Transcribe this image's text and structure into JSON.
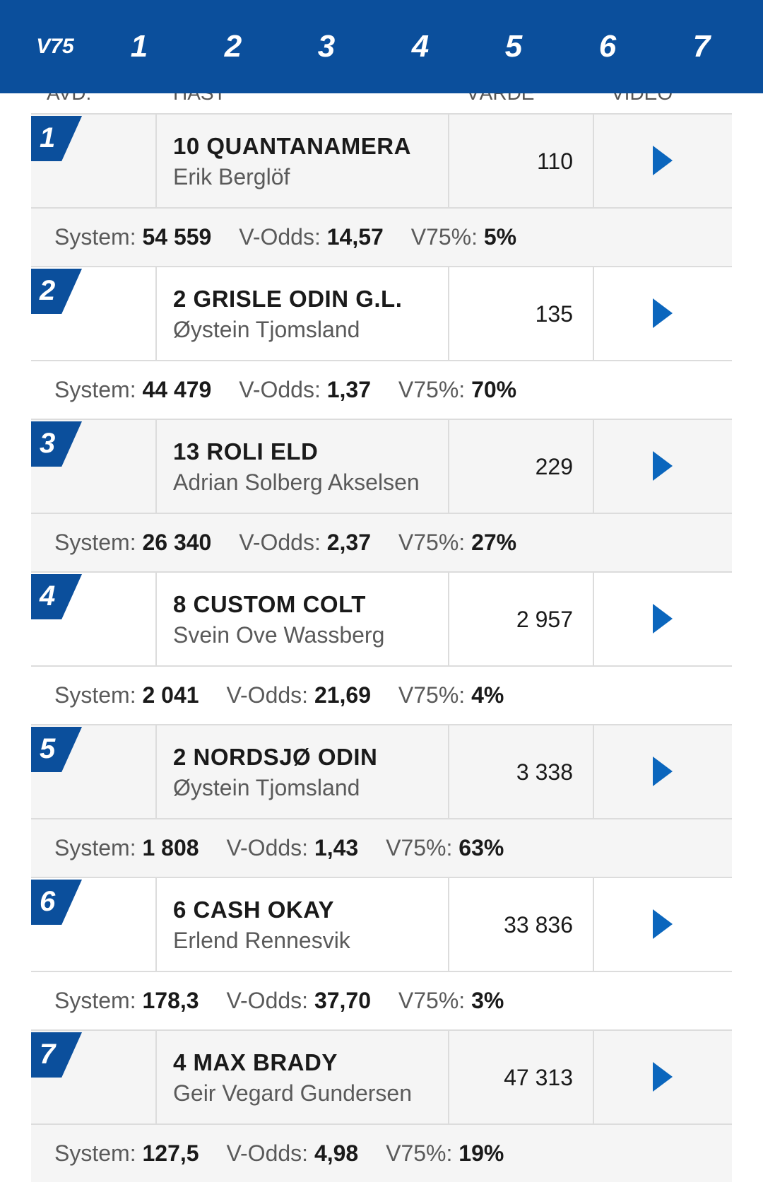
{
  "nav": {
    "items": [
      "V75",
      "1",
      "2",
      "3",
      "4",
      "5",
      "6",
      "7"
    ]
  },
  "header_peek": {
    "avd": "AVD.",
    "hast": "HÄST",
    "varde": "VÄRDE",
    "video": "VIDEO"
  },
  "labels": {
    "system": "System:",
    "vodds": "V-Odds:",
    "v75pct": "V75%:"
  },
  "colors": {
    "brand": "#0b4f9c",
    "play": "#0b66bd"
  },
  "races": [
    {
      "num": "1",
      "horse": "10 QUANTANAMERA",
      "driver": "Erik Berglöf",
      "value": "110",
      "system": "54 559",
      "vodds": "14,57",
      "v75pct": "5%"
    },
    {
      "num": "2",
      "horse": "2 GRISLE ODIN G.L.",
      "driver": "Øystein Tjomsland",
      "value": "135",
      "system": "44 479",
      "vodds": "1,37",
      "v75pct": "70%"
    },
    {
      "num": "3",
      "horse": "13 ROLI ELD",
      "driver": "Adrian Solberg Akselsen",
      "value": "229",
      "system": "26 340",
      "vodds": "2,37",
      "v75pct": "27%"
    },
    {
      "num": "4",
      "horse": "8 CUSTOM COLT",
      "driver": "Svein Ove Wassberg",
      "value": "2 957",
      "system": "2 041",
      "vodds": "21,69",
      "v75pct": "4%"
    },
    {
      "num": "5",
      "horse": "2 NORDSJØ ODIN",
      "driver": "Øystein Tjomsland",
      "value": "3 338",
      "system": "1 808",
      "vodds": "1,43",
      "v75pct": "63%"
    },
    {
      "num": "6",
      "horse": "6 CASH OKAY",
      "driver": "Erlend Rennesvik",
      "value": "33 836",
      "system": "178,3",
      "vodds": "37,70",
      "v75pct": "3%"
    },
    {
      "num": "7",
      "horse": "4 MAX BRADY",
      "driver": "Geir Vegard Gundersen",
      "value": "47 313",
      "system": "127,5",
      "vodds": "4,98",
      "v75pct": "19%"
    }
  ]
}
